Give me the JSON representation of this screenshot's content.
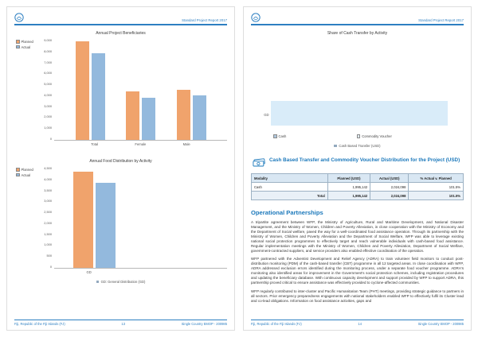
{
  "page_header": {
    "title": "Standard Project Report 2017"
  },
  "footer": {
    "project": "Fiji, Republic of the Fiji Islands (FJ)",
    "left_page_number": "13",
    "right_page_number": "14",
    "report_ref": "Single Country EMOP - 200985"
  },
  "cash_section": {
    "title": "Cash Based Transfer and Commodity Voucher Distribution for the Project (USD)"
  },
  "cash_table": {
    "headers": [
      "Modality",
      "Planned (USD)",
      "Actual (USD)",
      "% Actual v. Planned"
    ],
    "rows": [
      [
        "Cash",
        "1,995,142",
        "2,024,098",
        "101.5%"
      ]
    ],
    "total": [
      "Total",
      "1,995,142",
      "2,024,098",
      "101.5%"
    ]
  },
  "partnerships": {
    "title": "Operational Partnerships",
    "paragraphs": [
      "A tripartite agreement between WFP, the Ministry of Agriculture, Rural and Maritime Development, and National Disaster Management, and the Ministry of Women, Children and Poverty Alleviation, in close cooperation with the Ministry of Economy and the Department of Social welfare, paved the way for a well-coordinated food assistance operation. Through its partnership with the Ministry of Women, Children and Poverty Alleviation and the Department of Social Welfare, WFP was able to leverage existing national social protection programmes to effectively target and reach vulnerable individuals with cash-based food assistance. Regular implementation meetings with the Ministry of Women, Children and Poverty Alleviation, Department of Social Welfare, government-contracted suppliers, and service providers also enabled effective coordination of the operation.",
      "WFP partnered with the Adventist Development and Relief Agency (ADRA) to train volunteer field monitors to conduct post-distribution monitoring (PDM) of the cash-based transfer (CBT) programme in all 12 targeted areas. In close coordination with WFP, ADRA addressed exclusion errors identified during the monitoring process, under a separate food voucher programme. ADRA's monitoring also identified areas for improvement in the Government's social protection schemes, including registration procedures and updating the beneficiary database. With continuous capacity development and support provided by WFP to support ADRA, this partnership proved critical to ensure assistance was effectively provided to cyclone-affected communities.",
      "WFP regularly contributed to inter-cluster and Pacific Humanitarian Team (PHT) meetings, providing strategic guidance to partners in all sectors. Prior emergency preparedness engagements with national stakeholders enabled WFP to effectively fulfil its Cluster lead and co-lead obligations. Information on food assistance activities, gaps and"
    ]
  },
  "chart_data": [
    {
      "id": "beneficiaries",
      "type": "bar",
      "title": "Annual Project Beneficiaries",
      "categories": [
        "Total",
        "Female",
        "Male"
      ],
      "series": [
        {
          "name": "Planned",
          "color": "#f0a36c",
          "values": [
            8800,
            4300,
            4500
          ]
        },
        {
          "name": "Actual",
          "color": "#93b9dd",
          "values": [
            7700,
            3750,
            3950
          ]
        }
      ],
      "ylim": [
        0,
        9000
      ],
      "yticks": [
        "0",
        "1,000",
        "2,000",
        "3,000",
        "4,000",
        "5,000",
        "6,000",
        "7,000",
        "8,000",
        "9,000"
      ],
      "legend_position": "top-left",
      "grid": false
    },
    {
      "id": "food-distribution",
      "type": "bar",
      "title": "Annual Food Distribution by Activity",
      "categories": [
        "GD"
      ],
      "series": [
        {
          "name": "Planned",
          "color": "#f0a36c",
          "values": [
            4300
          ]
        },
        {
          "name": "Actual",
          "color": "#93b9dd",
          "values": [
            3800
          ]
        }
      ],
      "ylim": [
        0,
        4500
      ],
      "yticks": [
        "0",
        "500",
        "1,000",
        "1,500",
        "2,000",
        "2,500",
        "3,000",
        "3,500",
        "4,000",
        "4,500"
      ],
      "footnote": "GD: General Distribution (GD)",
      "legend_position": "top-left",
      "grid": false
    },
    {
      "id": "cash-transfer",
      "type": "hbar",
      "title": "Share of Cash Transfer by Activity",
      "categories": [
        "GD"
      ],
      "series": [
        {
          "name": "Cash",
          "color": "#d9ecf9",
          "values": [
            100
          ]
        }
      ],
      "xlim": [
        0,
        100
      ],
      "legend": [
        {
          "label": "Cash",
          "color": "#aec7dd"
        },
        {
          "label": "Commodity Voucher",
          "color": "#e3eef7"
        }
      ],
      "footnote": "Cash Based Transfer (USD)"
    }
  ],
  "colors": {
    "accent_blue": "#2d7fc1",
    "heading_blue": "#1b78bb",
    "planned_orange": "#f0a36c",
    "actual_blue": "#93b9dd",
    "cash_bar_light": "#d9ecf9",
    "table_header_bg": "#d9e7f3"
  }
}
